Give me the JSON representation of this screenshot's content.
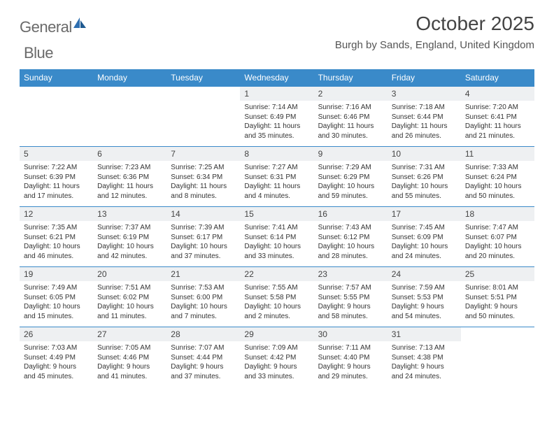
{
  "brand": {
    "name1": "General",
    "name2": "Blue"
  },
  "title": "October 2025",
  "location": "Burgh by Sands, England, United Kingdom",
  "colors": {
    "header_bg": "#3a8ac9",
    "header_text": "#ffffff",
    "daynum_bg": "#eef0f2",
    "border": "#3a8ac9",
    "brand_gray": "#6a6a6a",
    "brand_blue": "#2f6fb0"
  },
  "columns": [
    "Sunday",
    "Monday",
    "Tuesday",
    "Wednesday",
    "Thursday",
    "Friday",
    "Saturday"
  ],
  "weeks": [
    [
      {
        "n": "",
        "sr": "",
        "ss": "",
        "dl": ""
      },
      {
        "n": "",
        "sr": "",
        "ss": "",
        "dl": ""
      },
      {
        "n": "",
        "sr": "",
        "ss": "",
        "dl": ""
      },
      {
        "n": "1",
        "sr": "7:14 AM",
        "ss": "6:49 PM",
        "dl": "11 hours and 35 minutes."
      },
      {
        "n": "2",
        "sr": "7:16 AM",
        "ss": "6:46 PM",
        "dl": "11 hours and 30 minutes."
      },
      {
        "n": "3",
        "sr": "7:18 AM",
        "ss": "6:44 PM",
        "dl": "11 hours and 26 minutes."
      },
      {
        "n": "4",
        "sr": "7:20 AM",
        "ss": "6:41 PM",
        "dl": "11 hours and 21 minutes."
      }
    ],
    [
      {
        "n": "5",
        "sr": "7:22 AM",
        "ss": "6:39 PM",
        "dl": "11 hours and 17 minutes."
      },
      {
        "n": "6",
        "sr": "7:23 AM",
        "ss": "6:36 PM",
        "dl": "11 hours and 12 minutes."
      },
      {
        "n": "7",
        "sr": "7:25 AM",
        "ss": "6:34 PM",
        "dl": "11 hours and 8 minutes."
      },
      {
        "n": "8",
        "sr": "7:27 AM",
        "ss": "6:31 PM",
        "dl": "11 hours and 4 minutes."
      },
      {
        "n": "9",
        "sr": "7:29 AM",
        "ss": "6:29 PM",
        "dl": "10 hours and 59 minutes."
      },
      {
        "n": "10",
        "sr": "7:31 AM",
        "ss": "6:26 PM",
        "dl": "10 hours and 55 minutes."
      },
      {
        "n": "11",
        "sr": "7:33 AM",
        "ss": "6:24 PM",
        "dl": "10 hours and 50 minutes."
      }
    ],
    [
      {
        "n": "12",
        "sr": "7:35 AM",
        "ss": "6:21 PM",
        "dl": "10 hours and 46 minutes."
      },
      {
        "n": "13",
        "sr": "7:37 AM",
        "ss": "6:19 PM",
        "dl": "10 hours and 42 minutes."
      },
      {
        "n": "14",
        "sr": "7:39 AM",
        "ss": "6:17 PM",
        "dl": "10 hours and 37 minutes."
      },
      {
        "n": "15",
        "sr": "7:41 AM",
        "ss": "6:14 PM",
        "dl": "10 hours and 33 minutes."
      },
      {
        "n": "16",
        "sr": "7:43 AM",
        "ss": "6:12 PM",
        "dl": "10 hours and 28 minutes."
      },
      {
        "n": "17",
        "sr": "7:45 AM",
        "ss": "6:09 PM",
        "dl": "10 hours and 24 minutes."
      },
      {
        "n": "18",
        "sr": "7:47 AM",
        "ss": "6:07 PM",
        "dl": "10 hours and 20 minutes."
      }
    ],
    [
      {
        "n": "19",
        "sr": "7:49 AM",
        "ss": "6:05 PM",
        "dl": "10 hours and 15 minutes."
      },
      {
        "n": "20",
        "sr": "7:51 AM",
        "ss": "6:02 PM",
        "dl": "10 hours and 11 minutes."
      },
      {
        "n": "21",
        "sr": "7:53 AM",
        "ss": "6:00 PM",
        "dl": "10 hours and 7 minutes."
      },
      {
        "n": "22",
        "sr": "7:55 AM",
        "ss": "5:58 PM",
        "dl": "10 hours and 2 minutes."
      },
      {
        "n": "23",
        "sr": "7:57 AM",
        "ss": "5:55 PM",
        "dl": "9 hours and 58 minutes."
      },
      {
        "n": "24",
        "sr": "7:59 AM",
        "ss": "5:53 PM",
        "dl": "9 hours and 54 minutes."
      },
      {
        "n": "25",
        "sr": "8:01 AM",
        "ss": "5:51 PM",
        "dl": "9 hours and 50 minutes."
      }
    ],
    [
      {
        "n": "26",
        "sr": "7:03 AM",
        "ss": "4:49 PM",
        "dl": "9 hours and 45 minutes."
      },
      {
        "n": "27",
        "sr": "7:05 AM",
        "ss": "4:46 PM",
        "dl": "9 hours and 41 minutes."
      },
      {
        "n": "28",
        "sr": "7:07 AM",
        "ss": "4:44 PM",
        "dl": "9 hours and 37 minutes."
      },
      {
        "n": "29",
        "sr": "7:09 AM",
        "ss": "4:42 PM",
        "dl": "9 hours and 33 minutes."
      },
      {
        "n": "30",
        "sr": "7:11 AM",
        "ss": "4:40 PM",
        "dl": "9 hours and 29 minutes."
      },
      {
        "n": "31",
        "sr": "7:13 AM",
        "ss": "4:38 PM",
        "dl": "9 hours and 24 minutes."
      },
      {
        "n": "",
        "sr": "",
        "ss": "",
        "dl": ""
      }
    ]
  ]
}
